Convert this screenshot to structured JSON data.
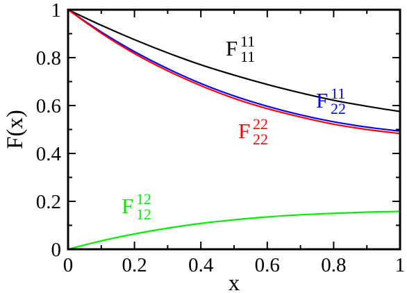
{
  "chart_data": {
    "type": "line",
    "title": "",
    "xlabel": "x",
    "ylabel": "F(x)",
    "xlim": [
      0,
      1
    ],
    "ylim": [
      0,
      1
    ],
    "xticks": [
      "0",
      "0.2",
      "0.4",
      "0.6",
      "0.8",
      "1"
    ],
    "yticks": [
      "0",
      "0.2",
      "0.4",
      "0.6",
      "0.8",
      "1"
    ],
    "grid": false,
    "legend": "none",
    "x": [
      0,
      0.1,
      0.2,
      0.3,
      0.4,
      0.5,
      0.6,
      0.7,
      0.8,
      0.9,
      1.0
    ],
    "series": [
      {
        "label": {
          "main": "F",
          "sub": "11",
          "sup": "11"
        },
        "color": "#000000",
        "values": [
          1.0,
          0.935,
          0.875,
          0.82,
          0.77,
          0.727,
          0.688,
          0.653,
          0.622,
          0.597,
          0.575
        ]
      },
      {
        "label": {
          "main": "F",
          "sub": "22",
          "sup": "11"
        },
        "color": "#0000ff",
        "values": [
          1.0,
          0.907,
          0.825,
          0.754,
          0.692,
          0.64,
          0.597,
          0.561,
          0.532,
          0.51,
          0.493
        ]
      },
      {
        "label": {
          "main": "F",
          "sub": "22",
          "sup": "22"
        },
        "color": "#ff0000",
        "values": [
          1.0,
          0.902,
          0.817,
          0.745,
          0.683,
          0.63,
          0.587,
          0.552,
          0.522,
          0.5,
          0.483
        ]
      },
      {
        "label": {
          "main": "F",
          "sub": "12",
          "sup": "12"
        },
        "color": "#00ee00",
        "values": [
          0.0,
          0.035,
          0.064,
          0.088,
          0.108,
          0.123,
          0.135,
          0.144,
          0.15,
          0.155,
          0.158
        ]
      }
    ]
  }
}
